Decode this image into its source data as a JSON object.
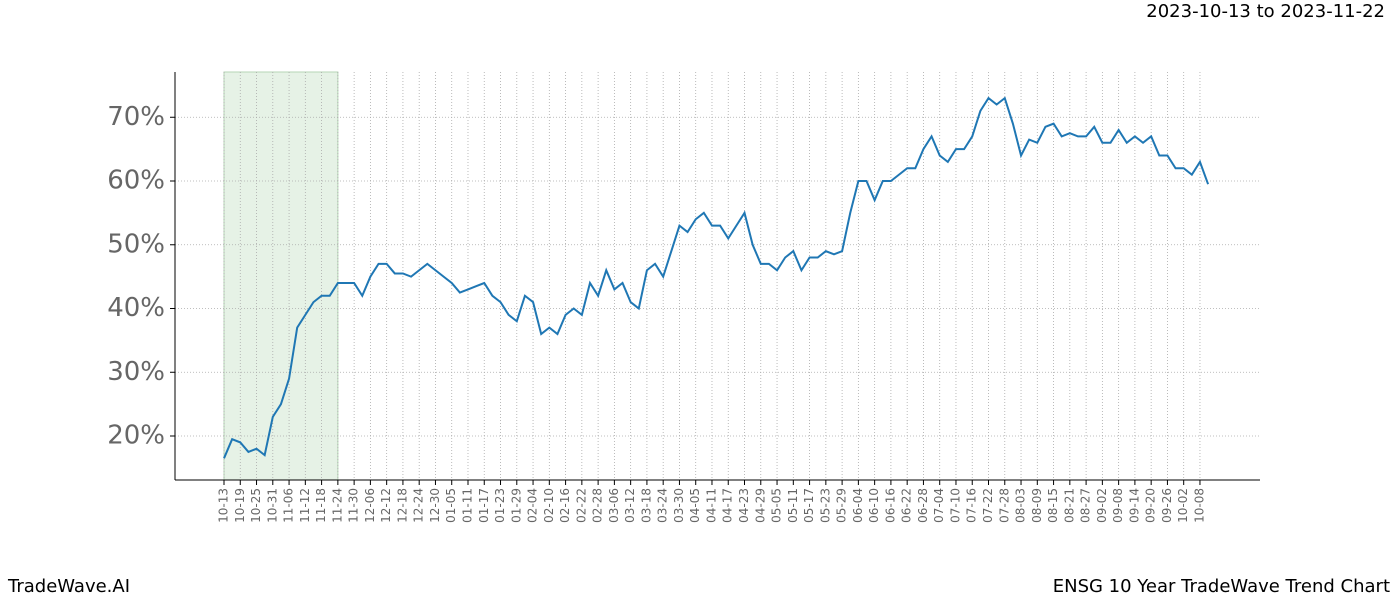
{
  "header": {
    "date_range": "2023-10-13 to 2023-11-22"
  },
  "footer": {
    "brand": "TradeWave.AI",
    "chart_name": "ENSG 10 Year TradeWave Trend Chart"
  },
  "chart_data": {
    "type": "line",
    "categories": [
      "10-13",
      null,
      "10-19",
      null,
      "10-25",
      null,
      "10-31",
      null,
      "11-06",
      null,
      "11-12",
      null,
      "11-18",
      null,
      "11-24",
      null,
      "11-30",
      null,
      "12-06",
      null,
      "12-12",
      null,
      "12-18",
      null,
      "12-24",
      null,
      "12-30",
      null,
      "01-05",
      null,
      "01-11",
      null,
      "01-17",
      null,
      "01-23",
      null,
      "01-29",
      null,
      "02-04",
      null,
      "02-10",
      null,
      "02-16",
      null,
      "02-22",
      null,
      "02-28",
      null,
      "03-06",
      null,
      "03-12",
      null,
      "03-18",
      null,
      "03-24",
      null,
      "03-30",
      null,
      "04-05",
      null,
      "04-11",
      null,
      "04-17",
      null,
      "04-23",
      null,
      "04-29",
      null,
      "05-05",
      null,
      "05-11",
      null,
      "05-17",
      null,
      "05-23",
      null,
      "05-29",
      null,
      "06-04",
      null,
      "06-10",
      null,
      "06-16",
      null,
      "06-22",
      null,
      "06-28",
      null,
      "07-04",
      null,
      "07-10",
      null,
      "07-16",
      null,
      "07-22",
      null,
      "07-28",
      null,
      "08-03",
      null,
      "08-09",
      null,
      "08-15",
      null,
      "08-21",
      null,
      "08-27",
      null,
      "09-02",
      null,
      "09-08",
      null,
      "09-14",
      null,
      "09-20",
      null,
      "09-26",
      null,
      "10-02",
      null,
      "10-08",
      null
    ],
    "series": [
      {
        "color": "#1f77b4",
        "values": [
          16.5,
          19.5,
          19,
          17.5,
          18,
          17,
          23,
          25,
          29,
          37,
          39,
          41,
          42,
          42,
          44,
          44,
          44,
          42,
          45,
          47,
          47,
          45.5,
          45.5,
          45,
          46,
          47,
          46,
          45,
          44,
          42.5,
          43,
          43.5,
          44,
          42,
          41,
          39,
          38,
          42,
          41,
          36,
          37,
          36,
          39,
          40,
          39,
          44,
          42,
          46,
          43,
          44,
          41,
          40,
          46,
          47,
          45,
          49,
          53,
          52,
          54,
          55,
          53,
          53,
          51,
          53,
          55,
          50,
          47,
          47,
          46,
          48,
          49,
          46,
          48,
          48,
          49,
          48.5,
          49,
          55,
          60,
          60,
          57,
          60,
          60,
          61,
          62,
          62,
          65,
          67,
          64,
          63,
          65,
          65,
          67,
          71,
          73,
          72,
          73,
          69,
          64,
          66.5,
          66,
          68.5,
          69,
          67,
          67.5,
          67,
          67,
          68.5,
          66,
          66,
          68,
          66,
          67,
          66,
          67,
          64,
          64,
          62,
          62,
          61,
          63,
          59.5
        ]
      }
    ],
    "ylim": [
      13.1,
      77.1
    ],
    "yticks": [
      {
        "value": 20,
        "label": "20%"
      },
      {
        "value": 30,
        "label": "30%"
      },
      {
        "value": 40,
        "label": "40%"
      },
      {
        "value": 50,
        "label": "50%"
      },
      {
        "value": 60,
        "label": "60%"
      },
      {
        "value": 70,
        "label": "70%"
      }
    ],
    "highlight": {
      "start": "10-13",
      "end": "11-24",
      "color": "#e6f2e6"
    },
    "grid": true
  }
}
